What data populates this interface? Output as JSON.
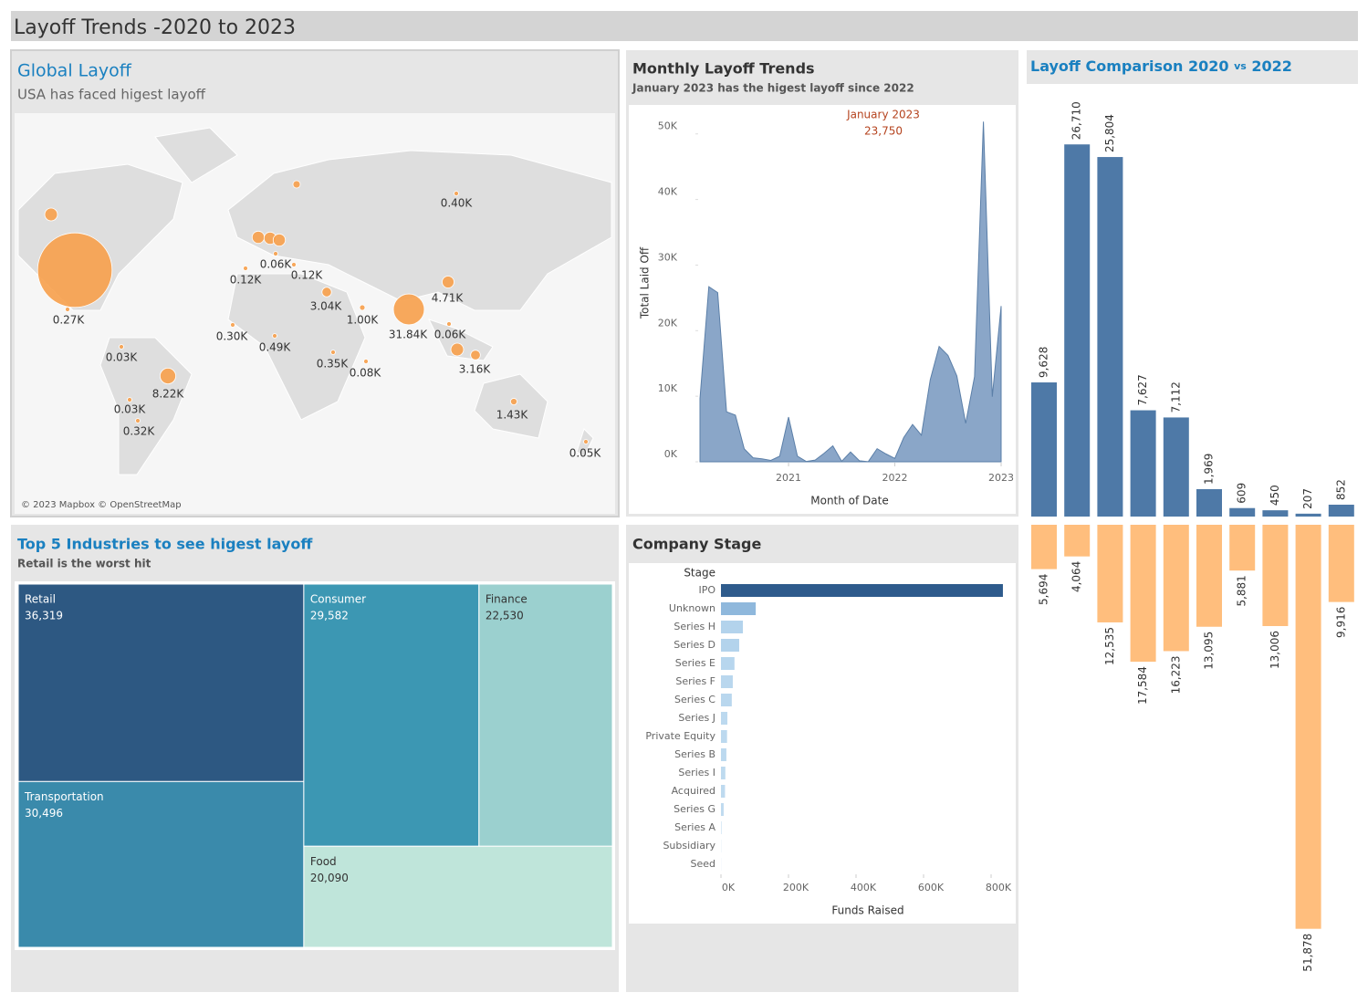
{
  "header": {
    "title": "Layoff Trends -2020 to 2023"
  },
  "chart_data": [
    {
      "type": "map",
      "title": "Global Layoff",
      "subtitle": "USA has faced higest layoff",
      "attribution": "© 2023 Mapbox © OpenStreetMap",
      "color": "#f7a04b",
      "values": [
        185,
        5.4,
        0.27,
        5,
        5,
        5,
        1.8,
        0.06,
        0.12,
        0.12,
        0.4,
        3.04,
        1,
        31.84,
        4.71,
        0.06,
        0.3,
        0.49,
        0.35,
        0.08,
        5.4,
        3.16,
        0.03,
        8.22,
        0.03,
        0.32,
        1.43,
        0.05
      ],
      "value_labels": [
        null,
        null,
        "0.27K",
        null,
        null,
        null,
        null,
        "0.06K",
        "0.12K",
        "0.12K",
        "0.40K",
        "3.04K",
        "1.00K",
        "31.84K",
        "4.71K",
        "0.06K",
        "0.30K",
        "0.49K",
        "0.35K",
        "0.08K",
        null,
        "3.16K",
        "0.03K",
        "8.22K",
        "0.03K",
        "0.32K",
        "1.43K",
        "0.05K"
      ]
    },
    {
      "type": "area",
      "title": "Monthly Layoff  Trends",
      "subtitle": "January 2023 has the higest layoff since 2022",
      "annotation": "January 2023",
      "x_label": "Month of Date",
      "y_label": "Total Laid Off",
      "color": "#8aa6c8",
      "line_color": "#5b7fa8",
      "x": [
        "2020-03",
        "2020-04",
        "2020-05",
        "2020-06",
        "2020-07",
        "2020-08",
        "2020-09",
        "2020-10",
        "2020-11",
        "2020-12",
        "2021-01",
        "2021-02",
        "2021-03",
        "2021-04",
        "2021-05",
        "2021-06",
        "2021-07",
        "2021-08",
        "2021-09",
        "2021-10",
        "2021-11",
        "2021-12",
        "2022-01",
        "2022-02",
        "2022-03",
        "2022-04",
        "2022-05",
        "2022-06",
        "2022-07",
        "2022-08",
        "2022-09",
        "2022-10",
        "2022-11",
        "2022-12",
        "2023-01"
      ],
      "values": [
        9628,
        26710,
        25804,
        7627,
        7112,
        1969,
        609,
        450,
        207,
        852,
        6813,
        868,
        47,
        261,
        1282,
        2434,
        80,
        1500,
        161,
        22,
        2000,
        1200,
        510,
        3685,
        5694,
        4064,
        12535,
        17584,
        16223,
        13095,
        5881,
        13006,
        51878,
        9916,
        23750
      ],
      "value_labels": [
        null,
        null,
        null,
        null,
        null,
        null,
        null,
        null,
        null,
        null,
        null,
        null,
        null,
        null,
        null,
        null,
        null,
        null,
        null,
        null,
        null,
        null,
        null,
        null,
        null,
        null,
        null,
        null,
        null,
        null,
        null,
        null,
        null,
        null,
        "23,750"
      ],
      "xlim": [
        "2020-03",
        "2023-01"
      ],
      "xticks": [
        {
          "value": "2021-01",
          "label": "2021"
        },
        {
          "value": "2022-01",
          "label": "2022"
        },
        {
          "value": "2023-01",
          "label": "2023"
        }
      ],
      "ylim": [
        0,
        54000
      ],
      "yticks": [
        {
          "value": 0,
          "label": "0K"
        },
        {
          "value": 10000,
          "label": "10K"
        },
        {
          "value": 20000,
          "label": "20K"
        },
        {
          "value": 30000,
          "label": "30K"
        },
        {
          "value": 40000,
          "label": "40K"
        },
        {
          "value": 50000,
          "label": "50K"
        }
      ]
    },
    {
      "type": "treemap",
      "title": "Top 5 Industries to see higest layoff",
      "subtitle": "Retail  is the worst hit",
      "categories": [
        "Retail",
        "Transportation",
        "Consumer",
        "Finance",
        "Food"
      ],
      "values": [
        36319,
        30496,
        29582,
        22530,
        20090
      ],
      "value_labels": [
        "36,319",
        "30,496",
        "29,582",
        "22,530",
        "20,090"
      ],
      "colors": [
        "#2d5882",
        "#3a8aab",
        "#3c97b3",
        "#9bd0cf",
        "#bfe5da"
      ]
    },
    {
      "type": "hbar",
      "title": "Company Stage",
      "category_label": "Stage",
      "x_label": "Funds Raised",
      "categories": [
        "IPO",
        "Unknown",
        "Series H",
        "Series D",
        "Series E",
        "Series F",
        "Series C",
        "Series J",
        "Private Equity",
        "Series B",
        "Series I",
        "Acquired",
        "Series G",
        "Series A",
        "Subsidiary",
        "Seed"
      ],
      "values": [
        835000,
        103000,
        65000,
        54000,
        40000,
        35000,
        32000,
        19000,
        18000,
        16000,
        13000,
        12000,
        8000,
        1500,
        500,
        300
      ],
      "colors": [
        "#2e5b8c",
        "#8fb8dc",
        "#b3d3ec",
        "#b3d3ec",
        "#b7d6ee",
        "#b9d7ee",
        "#b9d7ee",
        "#bcd9ef",
        "#bcd9ef",
        "#bcd9ef",
        "#bedaef",
        "#bedaef",
        "#c0dbf0",
        "#c2dcf0",
        "#c2dcf0",
        "#c2dcf0"
      ],
      "xlim": [
        0,
        850000
      ],
      "xticks": [
        {
          "value": 0,
          "label": "0K"
        },
        {
          "value": 200000,
          "label": "200K"
        },
        {
          "value": 400000,
          "label": "400K"
        },
        {
          "value": 600000,
          "label": "600K"
        },
        {
          "value": 800000,
          "label": "800K"
        }
      ]
    },
    {
      "type": "diverging",
      "title": "Layoff Comparison",
      "joiner": "vs",
      "ylim": [
        0,
        30000
      ],
      "y2lim": [
        0,
        60000
      ],
      "series": [
        {
          "name": "2020",
          "color": "#4e79a7",
          "values": [
            9628,
            26710,
            25804,
            7627,
            7112,
            1969,
            609,
            450,
            207,
            852
          ],
          "value_labels": [
            "9,628",
            "26,710",
            "25,804",
            "7,627",
            "7,112",
            "1,969",
            "609",
            "450",
            "207",
            "852"
          ]
        },
        {
          "name": "2022",
          "color": "#ffbe7d",
          "axis": "y2",
          "values": [
            5694,
            4064,
            12535,
            17584,
            16223,
            13095,
            5881,
            13006,
            51878,
            9916
          ],
          "value_labels": [
            "5,694",
            "4,064",
            "12,535",
            "17,584",
            "16,223",
            "13,095",
            "5,881",
            "13,006",
            "51,878",
            "9,916"
          ]
        }
      ]
    }
  ]
}
